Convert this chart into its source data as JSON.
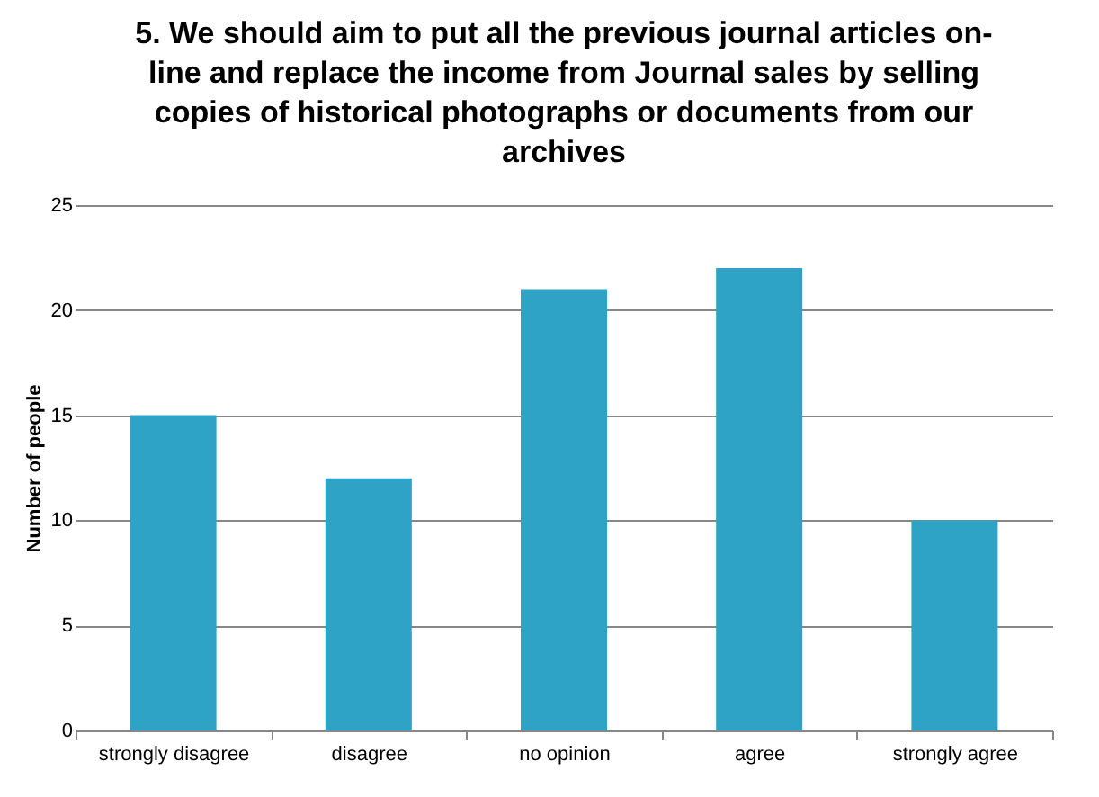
{
  "chart_data": {
    "type": "bar",
    "title": "5. We should aim to put all the previous journal articles on-line and replace the income from Journal sales by selling copies of historical photographs or documents from our archives",
    "ylabel": "Number of people",
    "categories": [
      "strongly disagree",
      "disagree",
      "no opinion",
      "agree",
      "strongly agree"
    ],
    "values": [
      15,
      12,
      21,
      22,
      10
    ],
    "color": "#2ea3c6",
    "ylim": [
      0,
      25
    ],
    "yticks": [
      0,
      5,
      10,
      15,
      20,
      25
    ],
    "grid": "y"
  }
}
